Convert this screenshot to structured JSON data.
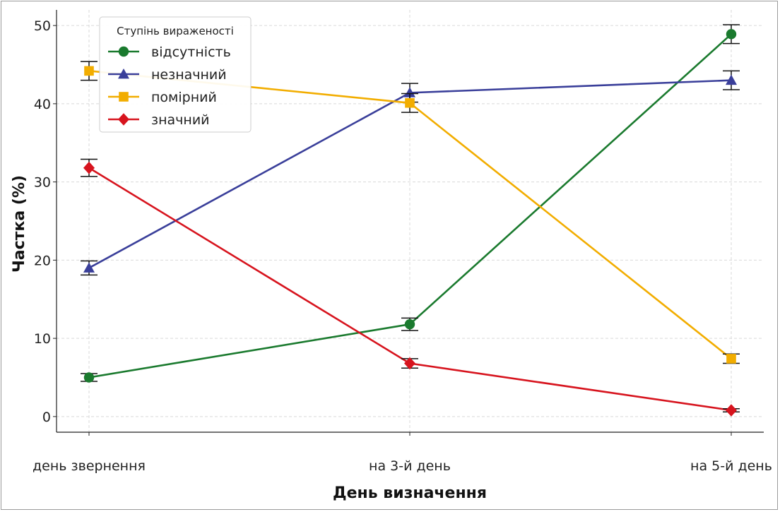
{
  "chart_data": {
    "type": "line",
    "xlabel": "День визначення",
    "ylabel": "Частка (%)",
    "categories": [
      "день звернення",
      "на 3-й день",
      "на 5-й день"
    ],
    "ylim": [
      -2,
      52
    ],
    "yticks": [
      0,
      10,
      20,
      30,
      40,
      50
    ],
    "grid": true,
    "legend": {
      "title": "Ступінь вираженості",
      "position": "top-left"
    },
    "series": [
      {
        "name": "відсутність",
        "color": "#1a7a2e",
        "marker": "circle",
        "values": [
          5.0,
          11.8,
          48.9
        ],
        "err": [
          0.5,
          0.8,
          1.2
        ]
      },
      {
        "name": "незначний",
        "color": "#3a3f9a",
        "marker": "triangle",
        "values": [
          19.0,
          41.4,
          43.0
        ],
        "err": [
          0.9,
          1.2,
          1.2
        ]
      },
      {
        "name": "помірний",
        "color": "#f2ad00",
        "marker": "square",
        "values": [
          44.2,
          40.1,
          7.4
        ],
        "err": [
          1.2,
          1.2,
          0.6
        ]
      },
      {
        "name": "значний",
        "color": "#d7141e",
        "marker": "diamond",
        "values": [
          31.8,
          6.8,
          0.8
        ],
        "err": [
          1.1,
          0.6,
          0.2
        ]
      }
    ]
  }
}
